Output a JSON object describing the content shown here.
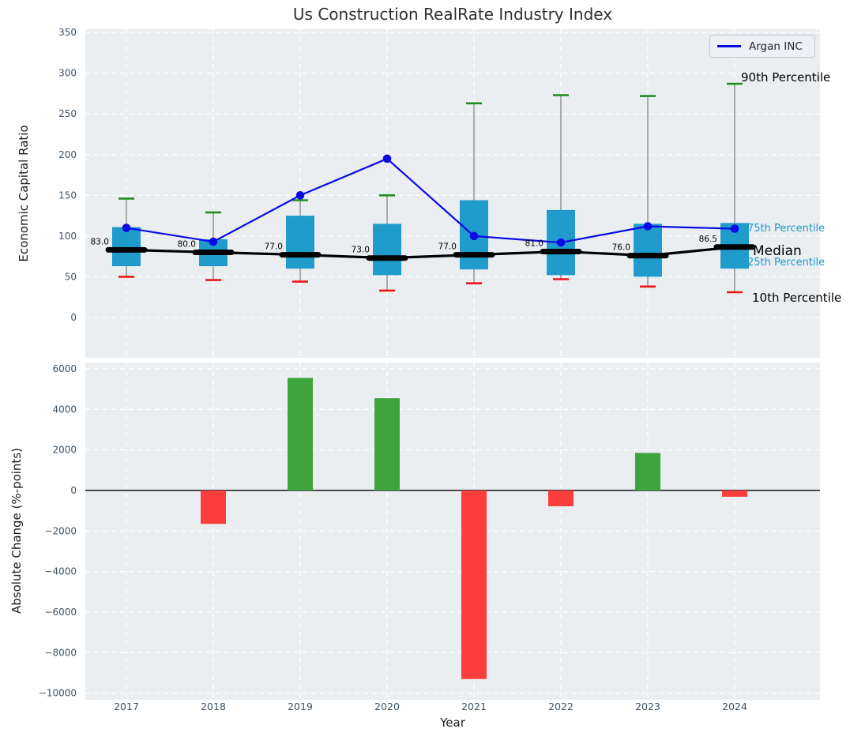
{
  "title": "Us Construction RealRate Industry Index",
  "legend": {
    "label": "Argan INC",
    "color": "#0202e0"
  },
  "right_labels": {
    "p90": "90th Percentile",
    "p75": "75th Percentile",
    "median": "Median",
    "p25": "25th Percentile",
    "p10": "10th Percentile"
  },
  "colors": {
    "axes_bg": "#eaeef1",
    "grid": "#ffffff",
    "box_fill": "#1f9bcc",
    "whisker": "#7d7d7d",
    "p90_cap": "#228b22",
    "p10_cap": "#ee1515",
    "median_line": "#000000",
    "argan_line": "#0a0ae8",
    "bar_positive": "#3ea43e",
    "bar_negative": "#fb3d3d",
    "tick_label": "#3d5266",
    "annotation": "#000000",
    "zero_line": "#000000"
  },
  "chart_data": [
    {
      "type": "box",
      "title": "Us Construction RealRate Industry Index",
      "ylabel": "Economic Capital Ratio",
      "categories": [
        "2017",
        "2018",
        "2019",
        "2020",
        "2021",
        "2022",
        "2023",
        "2024"
      ],
      "ylim": [
        -49.5,
        354
      ],
      "yticks": {
        "values": [
          0,
          50,
          100,
          150,
          200,
          250,
          300,
          350
        ],
        "labels": [
          "0",
          "50",
          "100",
          "150",
          "200",
          "250",
          "300",
          "350"
        ]
      },
      "grid": true,
      "legend_position": "upper right",
      "boxes": {
        "p10": [
          50,
          46,
          44,
          33,
          42,
          47,
          38,
          31
        ],
        "p25": [
          63,
          63,
          60,
          52,
          59,
          52,
          50,
          60
        ],
        "median": [
          83,
          80,
          77,
          73,
          77,
          81,
          76,
          86.5
        ],
        "p75": [
          111,
          96,
          125,
          115,
          144,
          132,
          115,
          116
        ],
        "p90": [
          146,
          129,
          144,
          150,
          263,
          273,
          272,
          287
        ]
      },
      "series": [
        {
          "name": "Argan INC",
          "type": "line",
          "values": [
            110,
            93,
            150,
            195,
            100,
            92,
            112,
            109
          ]
        },
        {
          "name": "Median",
          "type": "line",
          "values": [
            83,
            80,
            77,
            73,
            77,
            81,
            76,
            86.5
          ]
        }
      ],
      "median_annotations": [
        "83.0",
        "80.0",
        "77.0",
        "73.0",
        "77.0",
        "81.0",
        "76.0",
        "86.5"
      ]
    },
    {
      "type": "bar",
      "ylabel": "Absolute Change (%-points)",
      "xlabel": "Year",
      "categories": [
        "2017",
        "2018",
        "2019",
        "2020",
        "2021",
        "2022",
        "2023",
        "2024"
      ],
      "values": [
        null,
        -1650,
        5550,
        4550,
        -9300,
        -780,
        1850,
        -310
      ],
      "ylim": [
        -10325,
        6310
      ],
      "yticks": {
        "values": [
          6000,
          4000,
          2000,
          0,
          -2000,
          -4000,
          -6000,
          -8000,
          -10000
        ],
        "labels": [
          "6000",
          "4000",
          "2000",
          "0",
          "−2000",
          "−4000",
          "−6000",
          "−8000",
          "−10000"
        ]
      },
      "grid": true
    }
  ]
}
